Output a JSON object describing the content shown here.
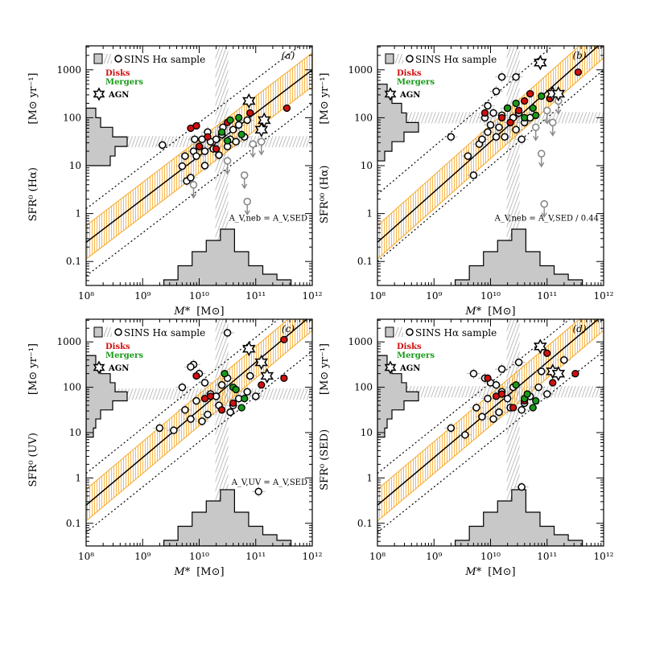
{
  "chart_data": [
    {
      "type": "scatter",
      "panel": "(a)",
      "ylabel": "SFR⁰ (Hα)",
      "yunit": "[M⊙ yr⁻¹]",
      "xlabel": "M*",
      "xunit": "[M⊙]",
      "xlim_log": [
        8,
        12
      ],
      "ylim_log": [
        -1.5,
        3.5
      ],
      "xticks": [
        "10⁸",
        "10⁹",
        "10¹⁰",
        "10¹¹",
        "10¹²"
      ],
      "yticks": [
        "0.1",
        "1",
        "10",
        "100",
        "1000"
      ],
      "annotation": "A_V,neb = A_V,SED",
      "median_logM": 10.4,
      "median_logSFR": 1.5,
      "fit_line": [
        [
          8,
          -0.6
        ],
        [
          12,
          3.0
        ]
      ],
      "dotted_lines": [
        [
          [
            8,
            -1.3
          ],
          [
            12,
            2.3
          ]
        ],
        [
          [
            8,
            0.1
          ],
          [
            12,
            3.7
          ]
        ]
      ],
      "band_offset": 0.35,
      "legend": {
        "sample": "SINS Hα sample",
        "disks": "Disks",
        "mergers": "Mergers",
        "agn": "AGN"
      },
      "open_points": [
        [
          9.35,
          1.43
        ],
        [
          9.7,
          0.99
        ],
        [
          9.78,
          0.68
        ],
        [
          9.85,
          0.75
        ],
        [
          9.9,
          1.3
        ],
        [
          9.92,
          1.55
        ],
        [
          9.95,
          1.2
        ],
        [
          10.0,
          1.4
        ],
        [
          10.05,
          1.55
        ],
        [
          10.1,
          1.3
        ],
        [
          10.15,
          1.7
        ],
        [
          10.2,
          1.5
        ],
        [
          10.25,
          1.35
        ],
        [
          10.3,
          1.55
        ],
        [
          10.35,
          1.22
        ],
        [
          10.4,
          1.65
        ],
        [
          10.42,
          1.8
        ],
        [
          10.5,
          1.4
        ],
        [
          10.55,
          1.55
        ],
        [
          10.6,
          1.75
        ],
        [
          10.65,
          1.5
        ],
        [
          10.7,
          1.85
        ],
        [
          10.8,
          1.6
        ],
        [
          10.85,
          1.95
        ],
        [
          9.75,
          1.2
        ],
        [
          10.1,
          1.0
        ]
      ],
      "disk_points": [
        [
          9.85,
          1.78
        ],
        [
          9.95,
          1.83
        ],
        [
          10.0,
          1.4
        ],
        [
          10.15,
          1.6
        ],
        [
          10.3,
          1.35
        ],
        [
          10.5,
          1.9
        ],
        [
          10.9,
          2.1
        ],
        [
          11.55,
          2.2
        ]
      ],
      "merger_points": [
        [
          10.4,
          1.7
        ],
        [
          10.55,
          1.95
        ],
        [
          10.7,
          2.0
        ],
        [
          10.75,
          1.65
        ],
        [
          10.5,
          1.52
        ]
      ],
      "agn_points": [
        [
          10.88,
          2.35
        ],
        [
          11.1,
          1.75
        ],
        [
          11.15,
          1.95
        ]
      ],
      "upper_limits": [
        [
          10.95,
          1.45
        ],
        [
          11.1,
          1.5
        ],
        [
          10.5,
          1.1
        ],
        [
          10.8,
          0.8
        ],
        [
          9.9,
          0.6
        ],
        [
          10.85,
          0.25
        ]
      ],
      "y_hist": [
        [
          1.1,
          0.5
        ],
        [
          1.3,
          0.6
        ],
        [
          1.5,
          0.85
        ],
        [
          1.7,
          0.55
        ],
        [
          1.9,
          0.3
        ],
        [
          2.1,
          0.2
        ]
      ],
      "x_hist": [
        [
          9.5,
          0.1
        ],
        [
          9.75,
          0.35
        ],
        [
          10.0,
          0.6
        ],
        [
          10.25,
          0.8
        ],
        [
          10.5,
          1.0
        ],
        [
          10.75,
          0.6
        ],
        [
          11.0,
          0.35
        ],
        [
          11.25,
          0.2
        ],
        [
          11.5,
          0.1
        ]
      ]
    },
    {
      "type": "scatter",
      "panel": "(b)",
      "ylabel": "SFR⁰⁰ (Hα)",
      "yunit": "[M⊙ yr⁻¹]",
      "xlabel": "M*",
      "xunit": "[M⊙]",
      "xlim_log": [
        8,
        12
      ],
      "ylim_log": [
        -1.5,
        3.5
      ],
      "xticks": [
        "10⁸",
        "10⁹",
        "10¹⁰",
        "10¹¹",
        "10¹²"
      ],
      "yticks": [
        "0.1",
        "1",
        "10",
        "100",
        "1000"
      ],
      "annotation": "A_V,neb = A_V,SED / 0.44",
      "median_logM": 10.4,
      "median_logSFR": 2.0,
      "fit_line": [
        [
          8,
          -0.6
        ],
        [
          12,
          3.6
        ]
      ],
      "dotted_lines": [
        [
          [
            8,
            -1.0
          ],
          [
            12,
            3.0
          ]
        ],
        [
          [
            8,
            0.4
          ],
          [
            12,
            4.4
          ]
        ]
      ],
      "band_offset": 0.35,
      "legend": {
        "sample": "SINS Hα sample",
        "disks": "Disks",
        "mergers": "Mergers",
        "agn": "AGN"
      },
      "open_points": [
        [
          9.3,
          1.6
        ],
        [
          9.6,
          1.2
        ],
        [
          9.7,
          0.8
        ],
        [
          9.8,
          1.45
        ],
        [
          9.85,
          1.55
        ],
        [
          9.9,
          2.0
        ],
        [
          9.95,
          1.7
        ],
        [
          10.0,
          1.85
        ],
        [
          10.05,
          2.1
        ],
        [
          10.1,
          1.6
        ],
        [
          10.15,
          1.8
        ],
        [
          10.2,
          2.05
        ],
        [
          10.25,
          1.6
        ],
        [
          10.3,
          2.2
        ],
        [
          10.35,
          1.9
        ],
        [
          10.4,
          2.0
        ],
        [
          10.45,
          1.75
        ],
        [
          10.5,
          2.1
        ],
        [
          10.55,
          1.55
        ],
        [
          10.6,
          1.9
        ],
        [
          10.7,
          2.0
        ],
        [
          10.2,
          2.85
        ],
        [
          9.95,
          2.25
        ],
        [
          10.1,
          2.55
        ],
        [
          10.45,
          2.85
        ]
      ],
      "disk_points": [
        [
          9.9,
          2.1
        ],
        [
          10.2,
          2.0
        ],
        [
          10.35,
          1.9
        ],
        [
          10.5,
          2.15
        ],
        [
          10.6,
          2.35
        ],
        [
          10.7,
          2.5
        ],
        [
          11.05,
          2.4
        ],
        [
          11.55,
          2.95
        ]
      ],
      "merger_points": [
        [
          10.3,
          2.2
        ],
        [
          10.45,
          2.3
        ],
        [
          10.6,
          2.0
        ],
        [
          10.75,
          2.2
        ],
        [
          10.8,
          2.05
        ],
        [
          10.9,
          2.45
        ]
      ],
      "agn_points": [
        [
          10.88,
          3.15
        ],
        [
          11.1,
          2.5
        ],
        [
          11.2,
          2.5
        ]
      ],
      "upper_limits": [
        [
          11.0,
          2.15
        ],
        [
          11.2,
          2.35
        ],
        [
          10.8,
          1.8
        ],
        [
          11.1,
          1.9
        ],
        [
          10.9,
          1.25
        ],
        [
          10.95,
          0.2
        ]
      ],
      "y_hist": [
        [
          1.2,
          0.15
        ],
        [
          1.4,
          0.3
        ],
        [
          1.6,
          0.55
        ],
        [
          1.8,
          0.85
        ],
        [
          2.0,
          0.6
        ],
        [
          2.2,
          0.5
        ],
        [
          2.4,
          0.3
        ],
        [
          2.6,
          0.2
        ]
      ],
      "x_hist": [
        [
          9.5,
          0.1
        ],
        [
          9.75,
          0.35
        ],
        [
          10.0,
          0.6
        ],
        [
          10.25,
          0.8
        ],
        [
          10.5,
          1.0
        ],
        [
          10.75,
          0.6
        ],
        [
          11.0,
          0.35
        ],
        [
          11.25,
          0.2
        ],
        [
          11.5,
          0.1
        ]
      ]
    },
    {
      "type": "scatter",
      "panel": "(c)",
      "ylabel": "SFR⁰ (UV)",
      "yunit": "[M⊙ yr⁻¹]",
      "xlabel": "M*",
      "xunit": "[M⊙]",
      "xlim_log": [
        8,
        12
      ],
      "ylim_log": [
        -1.5,
        3.5
      ],
      "xticks": [
        "10⁸",
        "10⁹",
        "10¹⁰",
        "10¹¹",
        "10¹²"
      ],
      "yticks": [
        "0.1",
        "1",
        "10",
        "100",
        "1000"
      ],
      "annotation": "A_V,UV = A_V,SED",
      "median_logM": 10.4,
      "median_logSFR": 1.85,
      "fit_line": [
        [
          8,
          -0.6
        ],
        [
          12,
          3.6
        ]
      ],
      "dotted_lines": [
        [
          [
            8,
            -1.2
          ],
          [
            12,
            2.8
          ]
        ],
        [
          [
            8,
            0.1
          ],
          [
            12,
            4.1
          ]
        ]
      ],
      "band_offset": 0.35,
      "legend": {
        "sample": "SINS Hα sample",
        "disks": "Disks",
        "mergers": "Mergers",
        "agn": "AGN"
      },
      "open_points": [
        [
          9.3,
          1.1
        ],
        [
          9.55,
          1.05
        ],
        [
          9.7,
          2.0
        ],
        [
          9.75,
          1.5
        ],
        [
          9.85,
          1.3
        ],
        [
          9.9,
          2.5
        ],
        [
          9.95,
          1.7
        ],
        [
          10.0,
          2.3
        ],
        [
          10.05,
          1.25
        ],
        [
          10.1,
          2.1
        ],
        [
          10.15,
          1.4
        ],
        [
          10.2,
          1.85
        ],
        [
          10.3,
          1.8
        ],
        [
          10.35,
          1.6
        ],
        [
          10.4,
          2.05
        ],
        [
          10.5,
          2.2
        ],
        [
          10.55,
          1.45
        ],
        [
          10.6,
          1.6
        ],
        [
          10.7,
          1.75
        ],
        [
          10.85,
          1.9
        ],
        [
          10.9,
          2.25
        ],
        [
          11.0,
          1.8
        ],
        [
          10.5,
          3.2
        ],
        [
          11.05,
          -0.3
        ],
        [
          9.85,
          2.45
        ]
      ],
      "disk_points": [
        [
          9.95,
          2.25
        ],
        [
          10.1,
          1.75
        ],
        [
          10.2,
          1.8
        ],
        [
          10.4,
          1.5
        ],
        [
          10.6,
          1.65
        ],
        [
          11.1,
          2.05
        ],
        [
          11.5,
          3.05
        ],
        [
          11.5,
          2.2
        ]
      ],
      "merger_points": [
        [
          10.45,
          2.3
        ],
        [
          10.6,
          2.0
        ],
        [
          10.75,
          1.55
        ],
        [
          10.8,
          1.75
        ],
        [
          10.65,
          1.95
        ]
      ],
      "agn_points": [
        [
          10.88,
          2.85
        ],
        [
          11.1,
          2.55
        ],
        [
          11.2,
          2.25
        ]
      ],
      "upper_limits": [],
      "y_hist": [
        [
          1.0,
          0.15
        ],
        [
          1.2,
          0.2
        ],
        [
          1.4,
          0.3
        ],
        [
          1.6,
          0.55
        ],
        [
          1.8,
          0.85
        ],
        [
          2.0,
          0.6
        ],
        [
          2.2,
          0.5
        ],
        [
          2.4,
          0.3
        ],
        [
          2.6,
          0.2
        ]
      ],
      "x_hist": [
        [
          9.5,
          0.1
        ],
        [
          9.75,
          0.35
        ],
        [
          10.0,
          0.6
        ],
        [
          10.25,
          0.8
        ],
        [
          10.5,
          1.0
        ],
        [
          10.75,
          0.6
        ],
        [
          11.0,
          0.35
        ],
        [
          11.25,
          0.2
        ],
        [
          11.5,
          0.1
        ]
      ]
    },
    {
      "type": "scatter",
      "panel": "(d)",
      "ylabel": "SFR⁰ (SED)",
      "yunit": "[M⊙ yr⁻¹]",
      "xlabel": "M*",
      "xunit": "[M⊙]",
      "xlim_log": [
        8,
        12
      ],
      "ylim_log": [
        -1.5,
        3.5
      ],
      "xticks": [
        "10⁸",
        "10⁹",
        "10¹⁰",
        "10¹¹",
        "10¹²"
      ],
      "yticks": [
        "0.1",
        "1",
        "10",
        "100",
        "1000"
      ],
      "annotation": "",
      "median_logM": 10.4,
      "median_logSFR": 1.9,
      "fit_line": [
        [
          8,
          -0.6
        ],
        [
          12,
          3.6
        ]
      ],
      "dotted_lines": [
        [
          [
            8,
            -1.2
          ],
          [
            12,
            2.8
          ]
        ],
        [
          [
            8,
            0.1
          ],
          [
            12,
            4.1
          ]
        ]
      ],
      "band_offset": 0.35,
      "legend": {
        "sample": "SINS Hα sample",
        "disks": "Disks",
        "mergers": "Mergers",
        "agn": "AGN"
      },
      "open_points": [
        [
          9.3,
          1.1
        ],
        [
          9.55,
          0.95
        ],
        [
          9.7,
          2.3
        ],
        [
          9.75,
          1.55
        ],
        [
          9.85,
          1.35
        ],
        [
          9.9,
          2.2
        ],
        [
          9.95,
          1.75
        ],
        [
          10.0,
          2.1
        ],
        [
          10.05,
          1.3
        ],
        [
          10.1,
          2.05
        ],
        [
          10.15,
          1.45
        ],
        [
          10.2,
          1.9
        ],
        [
          10.3,
          1.75
        ],
        [
          10.35,
          1.55
        ],
        [
          10.4,
          2.0
        ],
        [
          10.5,
          2.55
        ],
        [
          10.55,
          1.5
        ],
        [
          10.6,
          1.65
        ],
        [
          10.7,
          1.8
        ],
        [
          10.85,
          2.0
        ],
        [
          10.9,
          2.35
        ],
        [
          11.0,
          1.85
        ],
        [
          11.3,
          2.6
        ],
        [
          10.55,
          -0.2
        ],
        [
          10.2,
          2.4
        ]
      ],
      "disk_points": [
        [
          9.95,
          2.2
        ],
        [
          10.1,
          1.8
        ],
        [
          10.2,
          1.85
        ],
        [
          10.4,
          1.55
        ],
        [
          10.6,
          1.7
        ],
        [
          11.1,
          2.1
        ],
        [
          11.5,
          2.3
        ],
        [
          11.0,
          2.75
        ]
      ],
      "merger_points": [
        [
          10.45,
          2.05
        ],
        [
          10.6,
          1.75
        ],
        [
          10.75,
          1.55
        ],
        [
          10.8,
          1.7
        ],
        [
          10.65,
          1.85
        ]
      ],
      "agn_points": [
        [
          10.88,
          2.9
        ],
        [
          11.1,
          2.35
        ],
        [
          11.2,
          2.3
        ]
      ],
      "upper_limits": [],
      "y_hist": [
        [
          1.0,
          0.15
        ],
        [
          1.2,
          0.2
        ],
        [
          1.4,
          0.3
        ],
        [
          1.6,
          0.55
        ],
        [
          1.8,
          0.85
        ],
        [
          2.0,
          0.6
        ],
        [
          2.2,
          0.5
        ],
        [
          2.4,
          0.3
        ],
        [
          2.6,
          0.2
        ]
      ],
      "x_hist": [
        [
          9.5,
          0.1
        ],
        [
          9.75,
          0.35
        ],
        [
          10.0,
          0.6
        ],
        [
          10.25,
          0.8
        ],
        [
          10.5,
          1.0
        ],
        [
          10.75,
          0.6
        ],
        [
          11.0,
          0.35
        ],
        [
          11.25,
          0.2
        ],
        [
          11.5,
          0.1
        ]
      ]
    }
  ],
  "colors": {
    "band": "#f5a623",
    "disk": "#d01010",
    "merger": "#1a9a1a",
    "hist": "#c8c8c8",
    "hatch": "#999999",
    "limit": "#888888"
  }
}
